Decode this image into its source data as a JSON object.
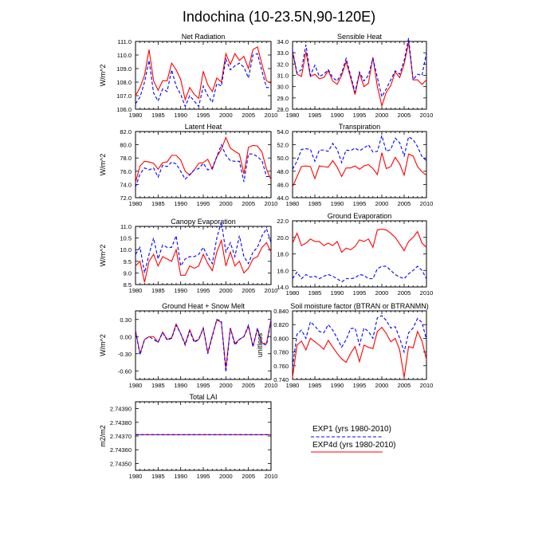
{
  "figure_title": "Indochina (10-23.5N,90-120E)",
  "legend": {
    "entries": [
      {
        "label": "EXP1 (yrs 1980-2010)",
        "color": "#0000ff",
        "style": "dashed"
      },
      {
        "label": "EXP4d (yrs 1980-2010)",
        "color": "#ff0000",
        "style": "solid"
      }
    ]
  },
  "chart_data": [
    {
      "type": "line",
      "title": "Net Radiation",
      "ylabel": "W/m^2",
      "xlabel": "",
      "xlim": [
        1980,
        2010
      ],
      "xticks": [
        1980,
        1985,
        1990,
        1995,
        2000,
        2005,
        2010
      ],
      "ylim": [
        106.0,
        111.0
      ],
      "yticks": [
        106.0,
        107.0,
        108.0,
        109.0,
        110.0,
        111.0
      ],
      "ytick_labels": [
        "106.0",
        "107.0",
        "108.0",
        "109.0",
        "110.0",
        "111.0"
      ],
      "x": [
        1980,
        1981,
        1982,
        1983,
        1984,
        1985,
        1986,
        1987,
        1988,
        1989,
        1990,
        1991,
        1992,
        1993,
        1994,
        1995,
        1996,
        1997,
        1998,
        1999,
        2000,
        2001,
        2002,
        2003,
        2004,
        2005,
        2006,
        2007,
        2008,
        2009,
        2010
      ],
      "series": [
        {
          "name": "EXP1",
          "values": [
            106.4,
            106.9,
            108.0,
            109.6,
            107.2,
            106.6,
            107.5,
            107.3,
            108.9,
            107.7,
            107.1,
            106.2,
            107.0,
            106.6,
            106.2,
            107.7,
            107.0,
            106.5,
            107.9,
            107.7,
            109.7,
            108.9,
            109.2,
            109.4,
            109.1,
            108.3,
            110.0,
            110.1,
            108.8,
            107.6,
            107.6
          ]
        },
        {
          "name": "EXP4d",
          "values": [
            107.0,
            107.6,
            108.5,
            110.4,
            108.1,
            107.4,
            108.1,
            108.1,
            109.4,
            108.9,
            108.2,
            106.7,
            107.6,
            107.1,
            106.8,
            108.8,
            107.8,
            107.3,
            108.3,
            108.0,
            110.1,
            109.3,
            110.1,
            109.6,
            109.9,
            109.0,
            110.4,
            110.6,
            109.3,
            108.1,
            107.9
          ]
        }
      ]
    },
    {
      "type": "line",
      "title": "Sensible Heat",
      "ylabel": "",
      "xlabel": "",
      "xlim": [
        1980,
        2010
      ],
      "xticks": [
        1980,
        1985,
        1990,
        1995,
        2000,
        2005,
        2010
      ],
      "ylim": [
        28.0,
        34.0
      ],
      "yticks": [
        28.0,
        29.0,
        30.0,
        31.0,
        32.0,
        33.0,
        34.0
      ],
      "ytick_labels": [
        "28.0",
        "29.0",
        "30.0",
        "31.0",
        "32.0",
        "33.0",
        "34.0"
      ],
      "x": [
        1980,
        1981,
        1982,
        1983,
        1984,
        1985,
        1986,
        1987,
        1988,
        1989,
        1990,
        1991,
        1992,
        1993,
        1994,
        1995,
        1996,
        1997,
        1998,
        1999,
        2000,
        2001,
        2002,
        2003,
        2004,
        2005,
        2006,
        2007,
        2008,
        2009,
        2010
      ],
      "series": [
        {
          "name": "EXP1",
          "values": [
            33.2,
            31.2,
            31.5,
            33.7,
            31.0,
            31.9,
            30.9,
            31.1,
            31.5,
            30.8,
            30.5,
            31.2,
            32.5,
            31.0,
            29.5,
            31.3,
            30.5,
            31.0,
            32.5,
            30.8,
            29.1,
            29.8,
            30.6,
            31.4,
            31.1,
            32.3,
            34.3,
            30.6,
            31.1,
            31.0,
            33.0
          ]
        },
        {
          "name": "EXP4d",
          "values": [
            33.1,
            31.1,
            30.9,
            33.1,
            30.9,
            31.1,
            30.7,
            30.8,
            31.4,
            30.5,
            30.2,
            31.0,
            32.2,
            30.8,
            29.3,
            31.2,
            30.0,
            30.3,
            32.6,
            30.0,
            28.3,
            29.5,
            30.1,
            31.3,
            30.8,
            32.0,
            33.9,
            30.6,
            30.6,
            30.2,
            30.6
          ]
        }
      ]
    },
    {
      "type": "line",
      "title": "Latent Heat",
      "ylabel": "W/m^2",
      "xlabel": "",
      "xlim": [
        1980,
        2010
      ],
      "xticks": [
        1980,
        1985,
        1990,
        1995,
        2000,
        2005,
        2010
      ],
      "ylim": [
        72.0,
        82.0
      ],
      "yticks": [
        72.0,
        74.0,
        76.0,
        78.0,
        80.0,
        82.0
      ],
      "ytick_labels": [
        "72.0",
        "74.0",
        "76.0",
        "78.0",
        "80.0",
        "82.0"
      ],
      "x": [
        1980,
        1981,
        1982,
        1983,
        1984,
        1985,
        1986,
        1987,
        1988,
        1989,
        1990,
        1991,
        1992,
        1993,
        1994,
        1995,
        1996,
        1997,
        1998,
        1999,
        2000,
        2001,
        2002,
        2003,
        2004,
        2005,
        2006,
        2007,
        2008,
        2009,
        2010
      ],
      "series": [
        {
          "name": "EXP1",
          "values": [
            73.6,
            75.6,
            76.5,
            76.2,
            76.5,
            75.1,
            76.9,
            76.7,
            77.4,
            77.1,
            76.0,
            74.8,
            75.5,
            76.2,
            76.4,
            77.2,
            76.2,
            76.5,
            78.2,
            80.0,
            78.4,
            77.6,
            77.5,
            77.5,
            74.4,
            78.6,
            78.6,
            78.2,
            77.6,
            75.2,
            75.2
          ]
        },
        {
          "name": "EXP4d",
          "values": [
            74.3,
            76.8,
            77.5,
            77.4,
            77.2,
            76.3,
            77.3,
            77.4,
            78.4,
            78.4,
            77.7,
            76.0,
            75.4,
            76.2,
            77.2,
            77.3,
            77.8,
            76.3,
            78.2,
            79.3,
            81.1,
            79.5,
            79.0,
            78.6,
            75.6,
            79.6,
            79.9,
            79.8,
            78.9,
            76.3,
            74.7
          ]
        }
      ]
    },
    {
      "type": "line",
      "title": "Transpiration",
      "ylabel": "",
      "xlabel": "",
      "xlim": [
        1980,
        2010
      ],
      "xticks": [
        1980,
        1985,
        1990,
        1995,
        2000,
        2005,
        2010
      ],
      "ylim": [
        44.0,
        54.0
      ],
      "yticks": [
        44.0,
        46.0,
        48.0,
        50.0,
        52.0,
        54.0
      ],
      "ytick_labels": [
        "44.0",
        "46.0",
        "48.0",
        "50.0",
        "52.0",
        "54.0"
      ],
      "x": [
        1980,
        1981,
        1982,
        1983,
        1984,
        1985,
        1986,
        1987,
        1988,
        1989,
        1990,
        1991,
        1992,
        1993,
        1994,
        1995,
        1996,
        1997,
        1998,
        1999,
        2000,
        2001,
        2002,
        2003,
        2004,
        2005,
        2006,
        2007,
        2008,
        2009,
        2010
      ],
      "series": [
        {
          "name": "EXP1",
          "values": [
            48.3,
            49.5,
            51.3,
            51.4,
            51.3,
            49.5,
            51.2,
            51.2,
            51.0,
            52.2,
            51.3,
            49.3,
            51.2,
            51.1,
            51.5,
            51.1,
            51.5,
            52.0,
            50.9,
            51.0,
            53.4,
            51.0,
            51.3,
            53.0,
            52.3,
            50.3,
            53.2,
            52.8,
            51.7,
            50.2,
            49.6
          ]
        },
        {
          "name": "EXP4d",
          "values": [
            45.6,
            47.2,
            48.7,
            48.8,
            48.7,
            46.9,
            48.8,
            48.7,
            48.6,
            49.6,
            48.6,
            47.2,
            48.5,
            48.5,
            48.8,
            48.3,
            48.8,
            49.0,
            48.4,
            47.5,
            50.8,
            48.4,
            48.7,
            50.1,
            49.1,
            47.4,
            50.6,
            50.3,
            48.7,
            47.9,
            47.4
          ]
        }
      ]
    },
    {
      "type": "line",
      "title": "Canopy Evaporation",
      "ylabel": "W/m^2",
      "xlabel": "",
      "xlim": [
        1980,
        2010
      ],
      "xticks": [
        1980,
        1985,
        1990,
        1995,
        2000,
        2005,
        2010
      ],
      "ylim": [
        8.5,
        11.0
      ],
      "yticks": [
        8.5,
        9.0,
        9.5,
        10.0,
        10.5,
        11.0
      ],
      "ytick_labels": [
        "8.5",
        "9.0",
        "9.5",
        "10.0",
        "10.5",
        "11.0"
      ],
      "x": [
        1980,
        1981,
        1982,
        1983,
        1984,
        1985,
        1986,
        1987,
        1988,
        1989,
        1990,
        1991,
        1992,
        1993,
        1994,
        1995,
        1996,
        1997,
        1998,
        1999,
        2000,
        2001,
        2002,
        2003,
        2004,
        2005,
        2006,
        2007,
        2008,
        2009,
        2010
      ],
      "series": [
        {
          "name": "EXP1",
          "values": [
            9.8,
            10.1,
            9.0,
            9.8,
            10.5,
            9.6,
            10.2,
            10.1,
            10.1,
            10.6,
            9.3,
            9.6,
            9.7,
            9.7,
            9.8,
            10.1,
            9.7,
            9.4,
            10.5,
            11.2,
            9.9,
            10.3,
            9.7,
            10.6,
            9.7,
            9.4,
            9.9,
            10.1,
            10.6,
            10.9,
            10.3
          ]
        },
        {
          "name": "EXP4d",
          "values": [
            9.3,
            9.5,
            8.6,
            9.5,
            9.8,
            9.3,
            9.7,
            9.6,
            9.5,
            10.0,
            8.9,
            8.9,
            9.3,
            9.2,
            9.3,
            9.8,
            9.4,
            9.1,
            9.9,
            10.4,
            9.3,
            9.9,
            9.3,
            9.5,
            9.0,
            9.2,
            9.6,
            9.7,
            10.1,
            10.3,
            9.9
          ]
        }
      ]
    },
    {
      "type": "line",
      "title": "Ground Evaporation",
      "ylabel": "",
      "xlabel": "",
      "xlim": [
        1980,
        2010
      ],
      "xticks": [
        1980,
        1985,
        1990,
        1995,
        2000,
        2005,
        2010
      ],
      "ylim": [
        14.0,
        22.0
      ],
      "yticks": [
        14.0,
        16.0,
        18.0,
        20.0,
        22.0
      ],
      "ytick_labels": [
        "14.0",
        "16.0",
        "18.0",
        "20.0",
        "22.0"
      ],
      "x": [
        1980,
        1981,
        1982,
        1983,
        1984,
        1985,
        1986,
        1987,
        1988,
        1989,
        1990,
        1991,
        1992,
        1993,
        1994,
        1995,
        1996,
        1997,
        1998,
        1999,
        2000,
        2001,
        2002,
        2003,
        2004,
        2005,
        2006,
        2007,
        2008,
        2009,
        2010
      ],
      "series": [
        {
          "name": "EXP1",
          "values": [
            15.0,
            15.8,
            15.0,
            15.5,
            15.2,
            15.3,
            15.0,
            15.3,
            15.5,
            15.3,
            15.0,
            14.6,
            15.0,
            15.0,
            15.1,
            15.5,
            15.4,
            15.0,
            15.0,
            16.2,
            16.5,
            16.5,
            16.0,
            15.5,
            15.2,
            15.0,
            15.6,
            16.0,
            16.5,
            16.0,
            15.0
          ]
        },
        {
          "name": "EXP4d",
          "values": [
            19.3,
            20.5,
            19.0,
            19.3,
            19.8,
            19.5,
            19.5,
            19.0,
            19.3,
            19.0,
            19.5,
            18.2,
            18.7,
            18.5,
            18.9,
            19.7,
            19.5,
            19.8,
            18.8,
            20.9,
            21.0,
            20.9,
            20.5,
            20.0,
            19.2,
            18.4,
            19.5,
            20.0,
            20.7,
            19.3,
            18.8
          ]
        }
      ]
    },
    {
      "type": "line",
      "title": "Ground Heat + Snow Melt",
      "ylabel": "W/m^2",
      "xlabel": "",
      "xlim": [
        1980,
        2010
      ],
      "xticks": [
        1980,
        1985,
        1990,
        1995,
        2000,
        2005,
        2010
      ],
      "ylim": [
        -0.75,
        0.45
      ],
      "yticks": [
        -0.6,
        -0.3,
        0.0,
        0.3
      ],
      "ytick_labels": [
        "-0.60",
        "-0.30",
        "0.00",
        "0.30"
      ],
      "x": [
        1980,
        1981,
        1982,
        1983,
        1984,
        1985,
        1986,
        1987,
        1988,
        1989,
        1990,
        1991,
        1992,
        1993,
        1994,
        1995,
        1996,
        1997,
        1998,
        1999,
        2000,
        2001,
        2002,
        2003,
        2004,
        2005,
        2006,
        2007,
        2008,
        2009,
        2010
      ],
      "series": [
        {
          "name": "EXP1",
          "values": [
            0.1,
            -0.32,
            -0.05,
            0.0,
            -0.05,
            -0.1,
            0.07,
            -0.06,
            -0.03,
            0.2,
            0.05,
            -0.15,
            0.1,
            -0.1,
            -0.05,
            0.15,
            -0.3,
            0.0,
            0.3,
            0.27,
            -0.62,
            0.15,
            -0.15,
            -0.05,
            0.0,
            0.2,
            -0.18,
            0.15,
            -0.12,
            -0.15,
            0.28
          ]
        },
        {
          "name": "EXP4d",
          "values": [
            0.1,
            -0.3,
            -0.05,
            0.0,
            0.0,
            -0.1,
            0.08,
            -0.05,
            -0.02,
            0.22,
            0.05,
            -0.13,
            0.12,
            -0.08,
            -0.05,
            0.15,
            -0.28,
            0.02,
            0.29,
            0.25,
            -0.55,
            0.15,
            -0.12,
            -0.05,
            0.0,
            0.18,
            -0.17,
            0.13,
            -0.12,
            -0.12,
            0.3
          ]
        }
      ]
    },
    {
      "type": "line",
      "title": "Soil moisture factor (BTRAN or BTRANMN)",
      "ylabel": "unitless",
      "xlabel": "",
      "xlim": [
        1980,
        2010
      ],
      "xticks": [
        1980,
        1985,
        1990,
        1995,
        2000,
        2005,
        2010
      ],
      "ylim": [
        0.74,
        0.84
      ],
      "yticks": [
        0.74,
        0.76,
        0.78,
        0.8,
        0.82,
        0.84
      ],
      "ytick_labels": [
        "0.740",
        "0.760",
        "0.780",
        "0.800",
        "0.820",
        "0.840"
      ],
      "x": [
        1980,
        1981,
        1982,
        1983,
        1984,
        1985,
        1986,
        1987,
        1988,
        1989,
        1990,
        1991,
        1992,
        1993,
        1994,
        1995,
        1996,
        1997,
        1998,
        1999,
        2000,
        2001,
        2002,
        2003,
        2004,
        2005,
        2006,
        2007,
        2008,
        2009,
        2010
      ],
      "series": [
        {
          "name": "EXP1",
          "values": [
            0.758,
            0.806,
            0.812,
            0.8,
            0.824,
            0.818,
            0.81,
            0.808,
            0.82,
            0.812,
            0.8,
            0.787,
            0.798,
            0.814,
            0.815,
            0.79,
            0.815,
            0.81,
            0.8,
            0.83,
            0.833,
            0.826,
            0.815,
            0.817,
            0.8,
            0.78,
            0.808,
            0.815,
            0.829,
            0.823,
            0.798
          ]
        },
        {
          "name": "EXP4d",
          "values": [
            0.743,
            0.79,
            0.796,
            0.783,
            0.8,
            0.795,
            0.79,
            0.784,
            0.797,
            0.787,
            0.778,
            0.77,
            0.765,
            0.778,
            0.788,
            0.766,
            0.79,
            0.787,
            0.785,
            0.81,
            0.816,
            0.807,
            0.795,
            0.8,
            0.783,
            0.743,
            0.788,
            0.786,
            0.81,
            0.796,
            0.769
          ]
        }
      ]
    },
    {
      "type": "line",
      "title": "Total LAI",
      "ylabel": "m2/m2",
      "xlabel": "",
      "xlim": [
        1980,
        2010
      ],
      "xticks": [
        1980,
        1985,
        1990,
        1995,
        2000,
        2005,
        2010
      ],
      "ylim": [
        2.74345,
        2.74395
      ],
      "yticks": [
        2.7435,
        2.7436,
        2.7437,
        2.7438,
        2.7439
      ],
      "ytick_labels": [
        "2.74350",
        "2.74360",
        "2.74370",
        "2.74380",
        "2.74390"
      ],
      "x": [
        1980,
        2010
      ],
      "series": [
        {
          "name": "EXP1",
          "values": [
            2.74371,
            2.74371
          ]
        },
        {
          "name": "EXP4d",
          "values": [
            2.74371,
            2.74371
          ]
        }
      ]
    }
  ]
}
